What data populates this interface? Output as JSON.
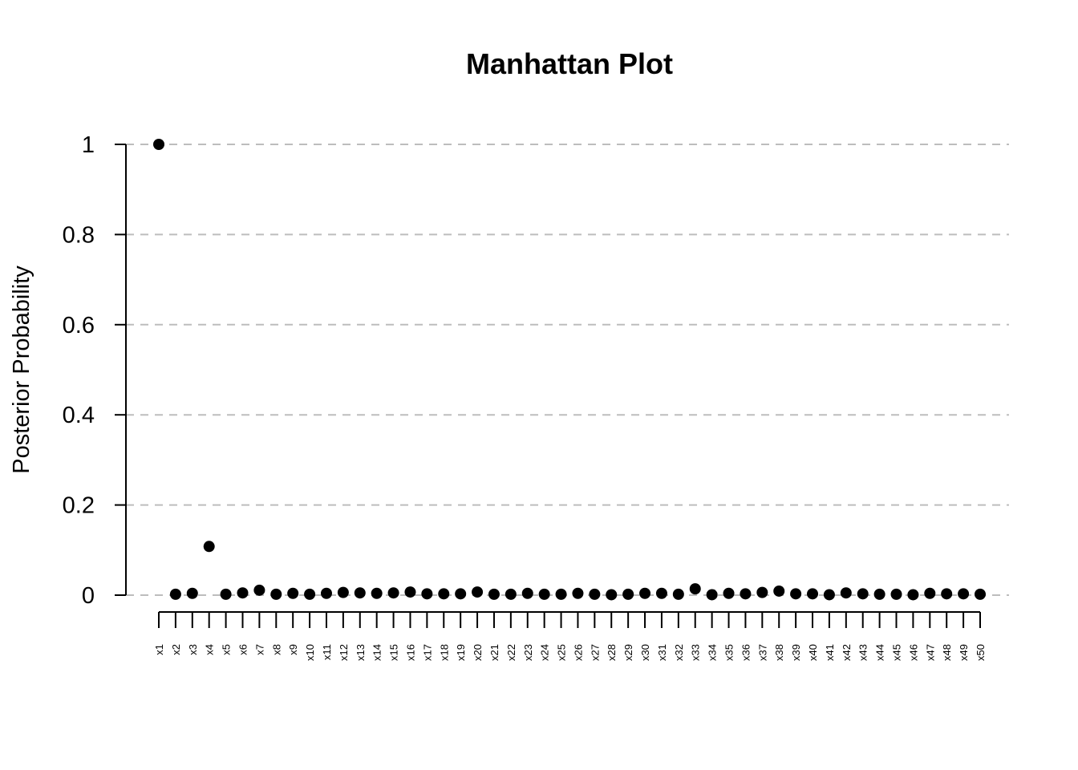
{
  "chart_data": {
    "type": "scatter",
    "title": "Manhattan Plot",
    "xlabel": "",
    "ylabel": "Posterior Probability",
    "ylim": [
      0,
      1
    ],
    "yticks": [
      "0",
      "0.2",
      "0.4",
      "0.6",
      "0.8",
      "1"
    ],
    "grid": "horizontal dashed",
    "categories": [
      "x1",
      "x2",
      "x3",
      "x4",
      "x5",
      "x6",
      "x7",
      "x8",
      "x9",
      "x10",
      "x11",
      "x12",
      "x13",
      "x14",
      "x15",
      "x16",
      "x17",
      "x18",
      "x19",
      "x20",
      "x21",
      "x22",
      "x23",
      "x24",
      "x25",
      "x26",
      "x27",
      "x28",
      "x29",
      "x30",
      "x31",
      "x32",
      "x33",
      "x34",
      "x35",
      "x36",
      "x37",
      "x38",
      "x39",
      "x40",
      "x41",
      "x42",
      "x43",
      "x44",
      "x45",
      "x46",
      "x47",
      "x48",
      "x49",
      "x50"
    ],
    "values": [
      1.0,
      0.002,
      0.004,
      0.108,
      0.002,
      0.005,
      0.011,
      0.002,
      0.004,
      0.002,
      0.004,
      0.006,
      0.005,
      0.004,
      0.005,
      0.007,
      0.003,
      0.003,
      0.003,
      0.007,
      0.002,
      0.002,
      0.004,
      0.002,
      0.002,
      0.004,
      0.002,
      0.001,
      0.002,
      0.004,
      0.004,
      0.002,
      0.014,
      0.001,
      0.004,
      0.003,
      0.006,
      0.009,
      0.003,
      0.003,
      0.001,
      0.005,
      0.003,
      0.002,
      0.002,
      0.001,
      0.004,
      0.003,
      0.003,
      0.002
    ],
    "colors": {
      "points": "#000000",
      "grid": "#bdbdbd",
      "axis": "#000000"
    }
  }
}
